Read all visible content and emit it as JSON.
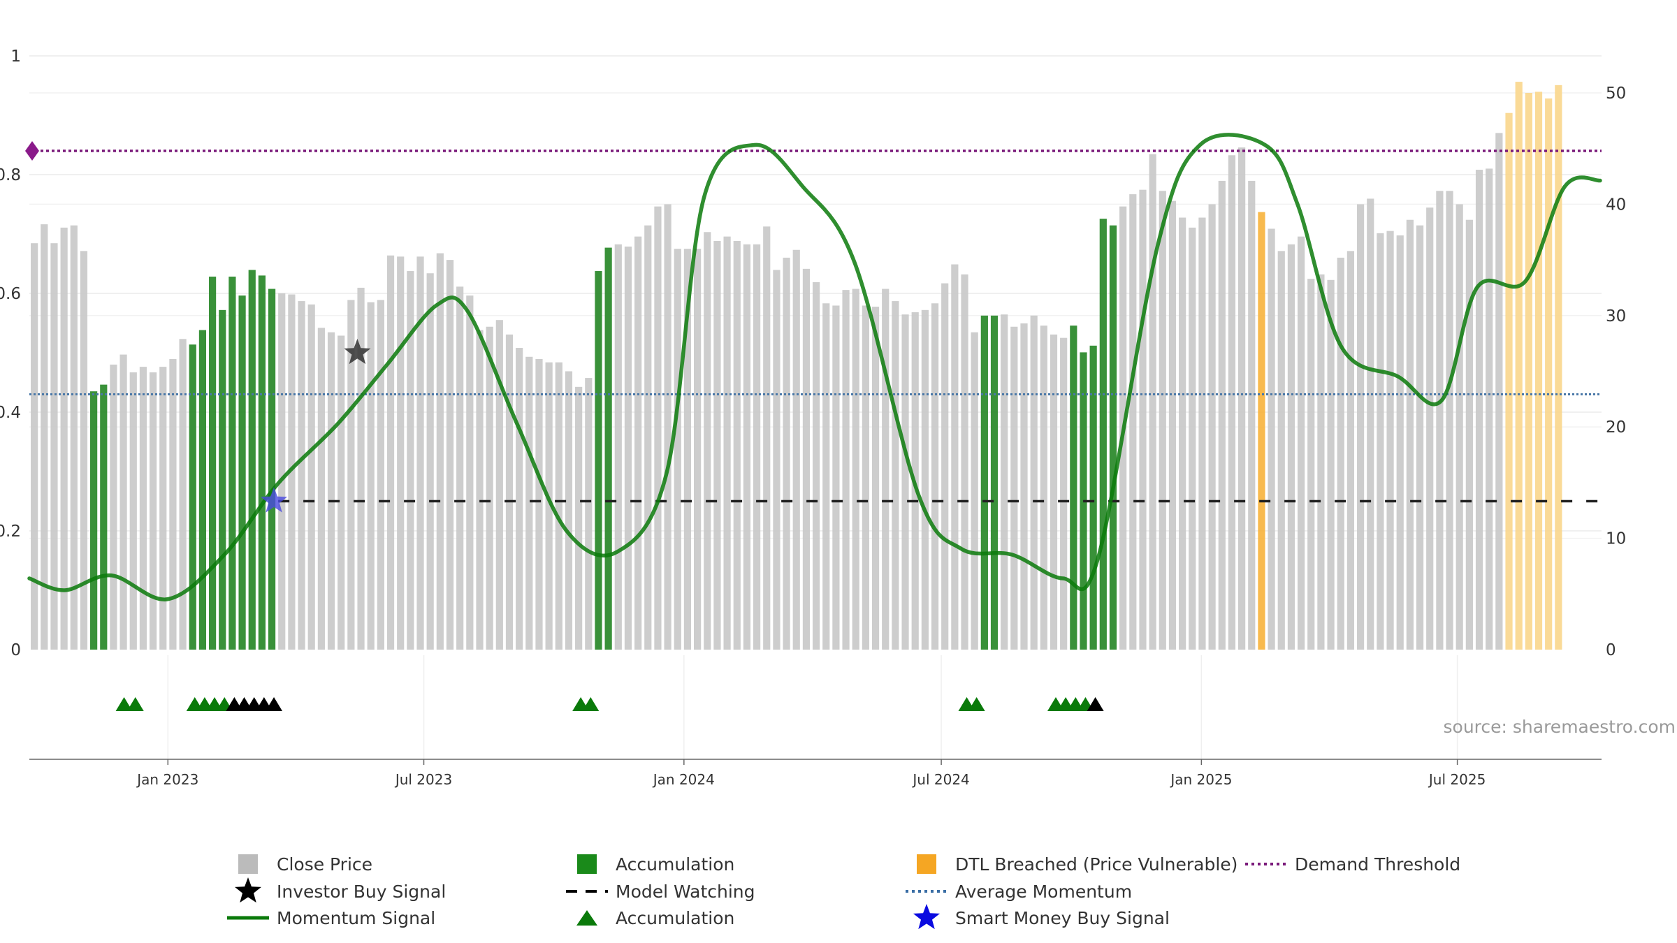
{
  "chart_data": {
    "type": "bar",
    "source": "source: sharemaestro.com",
    "x_range": [
      "2022-09-25",
      "2025-10-11"
    ],
    "y_left": {
      "ylim": [
        0,
        1
      ],
      "ticks": [
        "0",
        "0.2",
        "0.4",
        "0.6",
        "0.8",
        "1"
      ]
    },
    "y_right": {
      "ylim": [
        0,
        50
      ],
      "ticks": [
        "0",
        "10",
        "20",
        "30",
        "40",
        "50"
      ]
    },
    "x_ticks": [
      {
        "date": "2023-01-01",
        "label": "Jan 2023"
      },
      {
        "date": "2023-07-01",
        "label": "Jul 2023"
      },
      {
        "date": "2024-01-01",
        "label": "Jan 2024"
      },
      {
        "date": "2024-07-01",
        "label": "Jul 2024"
      },
      {
        "date": "2025-01-01",
        "label": "Jan 2025"
      },
      {
        "date": "2025-07-01",
        "label": "Jul 2025"
      }
    ],
    "close_price": {
      "start_date": "2022-09-25",
      "interval_days": 7,
      "values": [
        36.5,
        38.2,
        36.5,
        37.9,
        38.1,
        35.8,
        23.2,
        23.8,
        25.6,
        26.5,
        24.9,
        25.4,
        24.9,
        25.4,
        26.1,
        27.9,
        27.4,
        28.7,
        33.5,
        30.5,
        33.5,
        31.8,
        34.1,
        33.6,
        32.4,
        32.0,
        31.9,
        31.3,
        31.0,
        28.9,
        28.5,
        28.2,
        31.4,
        32.5,
        31.2,
        31.4,
        35.4,
        35.3,
        34.0,
        35.3,
        33.8,
        35.6,
        35.0,
        32.6,
        31.8,
        28.7,
        29.0,
        29.6,
        28.3,
        27.1,
        26.3,
        26.1,
        25.8,
        25.8,
        25.0,
        23.6,
        24.4,
        34.0,
        36.1,
        36.4,
        36.2,
        37.1,
        38.1,
        39.8,
        40.0,
        36.0,
        36.0,
        36.0,
        37.5,
        36.7,
        37.1,
        36.7,
        36.4,
        36.4,
        38.0,
        34.1,
        35.2,
        35.9,
        34.2,
        33.0,
        31.1,
        30.9,
        32.3,
        32.4,
        30.9,
        30.8,
        32.4,
        31.3,
        30.1,
        30.3,
        30.5,
        31.1,
        32.9,
        34.6,
        33.7,
        28.5,
        30.0,
        30.0,
        30.1,
        29.0,
        29.3,
        30.0,
        29.1,
        28.3,
        28.0,
        29.1,
        26.7,
        27.3,
        38.7,
        38.1,
        39.8,
        40.9,
        41.3,
        44.5,
        41.2,
        40.3,
        38.8,
        37.9,
        38.8,
        40.0,
        42.1,
        44.4,
        45.1,
        42.1,
        39.3,
        37.8,
        35.8,
        36.4,
        37.1,
        33.3,
        33.7,
        33.2,
        35.2,
        35.8,
        40.0,
        40.5,
        37.4,
        37.6,
        37.2,
        38.6,
        38.1,
        39.7,
        41.2,
        41.2,
        40.0,
        38.6,
        43.1,
        43.2,
        46.4,
        48.2,
        51.0,
        50.0,
        50.1,
        49.5,
        50.7
      ]
    },
    "accumulation_bar_indices": [
      6,
      7,
      16,
      17,
      18,
      19,
      20,
      21,
      22,
      23,
      24,
      57,
      58,
      96,
      97,
      105,
      106,
      107,
      108,
      109
    ],
    "dtl_breached_bar_indices": [
      124,
      149,
      150,
      151,
      152,
      153,
      154,
      155,
      156
    ],
    "momentum_signal": {
      "x_dates": [
        "2022-09-25",
        "2022-10-20",
        "2022-11-22",
        "2023-01-01",
        "2023-02-10",
        "2023-03-20",
        "2023-05-01",
        "2023-06-05",
        "2023-07-10",
        "2023-08-01",
        "2023-09-05",
        "2023-10-10",
        "2023-11-15",
        "2023-12-20",
        "2024-01-15",
        "2024-02-20",
        "2024-03-25",
        "2024-05-01",
        "2024-06-15",
        "2024-07-15",
        "2024-08-20",
        "2024-09-25",
        "2024-10-20",
        "2024-12-01",
        "2024-12-31",
        "2025-02-15",
        "2025-03-10",
        "2025-04-10",
        "2025-05-20",
        "2025-06-20",
        "2025-07-15",
        "2025-08-18",
        "2025-09-15",
        "2025-10-10"
      ],
      "values": [
        0.12,
        0.1,
        0.125,
        0.085,
        0.16,
        0.28,
        0.38,
        0.48,
        0.58,
        0.57,
        0.38,
        0.2,
        0.165,
        0.3,
        0.76,
        0.85,
        0.78,
        0.65,
        0.26,
        0.17,
        0.16,
        0.12,
        0.155,
        0.68,
        0.85,
        0.85,
        0.75,
        0.51,
        0.46,
        0.42,
        0.61,
        0.62,
        0.78,
        0.79
      ]
    },
    "average_momentum": 0.43,
    "demand_threshold": 0.84,
    "model_watching": {
      "from_date": "2023-03-20",
      "value": 0.25
    },
    "investor_buy_signal": {
      "date": "2023-05-15",
      "value": 0.5
    },
    "smart_money_buy_signal": {
      "date": "2023-03-17",
      "value": 0.25
    },
    "accumulation_triangles": [
      {
        "date": "2022-12-01",
        "color": "green"
      },
      {
        "date": "2022-12-09",
        "color": "green"
      },
      {
        "date": "2023-01-20",
        "color": "green"
      },
      {
        "date": "2023-01-27",
        "color": "green"
      },
      {
        "date": "2023-02-03",
        "color": "green"
      },
      {
        "date": "2023-02-10",
        "color": "green"
      },
      {
        "date": "2023-02-17",
        "color": "black"
      },
      {
        "date": "2023-02-24",
        "color": "black"
      },
      {
        "date": "2023-03-03",
        "color": "black"
      },
      {
        "date": "2023-03-10",
        "color": "black"
      },
      {
        "date": "2023-03-17",
        "color": "black"
      },
      {
        "date": "2023-10-20",
        "color": "green"
      },
      {
        "date": "2023-10-27",
        "color": "green"
      },
      {
        "date": "2024-07-19",
        "color": "green"
      },
      {
        "date": "2024-07-26",
        "color": "green"
      },
      {
        "date": "2024-09-20",
        "color": "green"
      },
      {
        "date": "2024-09-27",
        "color": "green"
      },
      {
        "date": "2024-10-04",
        "color": "green"
      },
      {
        "date": "2024-10-11",
        "color": "green"
      },
      {
        "date": "2024-10-18",
        "color": "black"
      }
    ],
    "legend": [
      {
        "label": "Close Price",
        "symbol": "square",
        "color": "#bbbbbb"
      },
      {
        "label": "Investor Buy Signal",
        "symbol": "star",
        "color": "#000000"
      },
      {
        "label": "Momentum Signal",
        "symbol": "line",
        "color": "#0a7a0a"
      },
      {
        "label": "Accumulation",
        "symbol": "square",
        "color": "#1a8a1a"
      },
      {
        "label": "Model Watching",
        "symbol": "dash",
        "color": "#000000"
      },
      {
        "label": "Accumulation",
        "symbol": "triangle",
        "color": "#0a7a0a"
      },
      {
        "label": "DTL Breached (Price Vulnerable)",
        "symbol": "square",
        "color": "#f5a623"
      },
      {
        "label": "Average Momentum",
        "symbol": "dotted",
        "color": "#3a6ea5"
      },
      {
        "label": "Smart Money Buy Signal",
        "symbol": "star",
        "color": "#0b0be0"
      },
      {
        "label": "Demand Threshold",
        "symbol": "dotted",
        "color": "#7a1a7a"
      }
    ],
    "colors": {
      "close": "#c8c8c8",
      "accumulation": "#2e8b2e",
      "dtl": "#f9d68c",
      "dtl_highlight": "#f7b23b",
      "momentum": "#0a7a0a",
      "average": "#4a78a8",
      "threshold": "#7a1a7a",
      "grid": "#ebebeb"
    }
  }
}
